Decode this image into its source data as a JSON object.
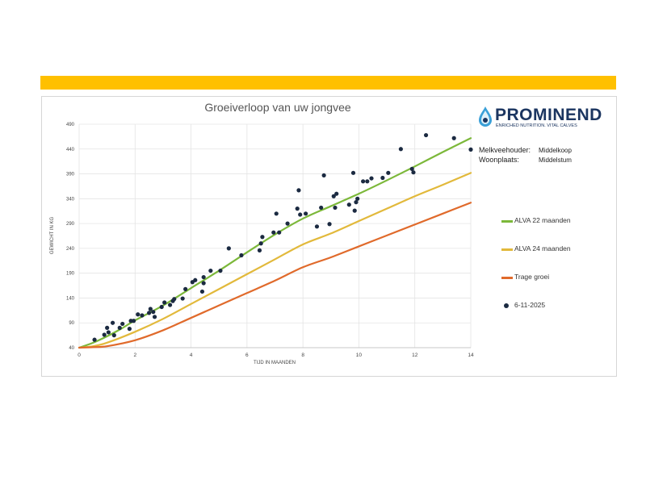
{
  "header": {
    "info": [
      {
        "label": "Melkveehouder:",
        "value": "Middelkoop"
      },
      {
        "label": "Woonplaats:",
        "value": "Middelstum"
      }
    ]
  },
  "logo": {
    "name": "PROMINEND",
    "tagline": "ENRICHED NUTRITION. VITAL CALVES",
    "icon": "water-drop-logo-icon"
  },
  "colors": {
    "accent_bar": "#ffc000",
    "alva22": "#7cb83a",
    "alva24": "#e2b93b",
    "trage": "#e06a2b",
    "points": "#1b2a41",
    "brand": "#1b3560"
  },
  "chart_data": {
    "type": "scatter",
    "title": "Groeiverloop van uw jongvee",
    "xlabel": "TIJD IN MAANDEN",
    "ylabel": "GEWICHT IN KG",
    "xlim": [
      0,
      14
    ],
    "ylim": [
      40,
      490
    ],
    "x_ticks": [
      0,
      2,
      4,
      6,
      8,
      10,
      12,
      14
    ],
    "y_ticks": [
      40,
      90,
      140,
      190,
      240,
      290,
      340,
      390,
      440,
      490
    ],
    "grid": true,
    "legend_position": "right",
    "series": [
      {
        "name": "ALVA 22 maanden",
        "kind": "line",
        "color": "#7cb83a",
        "points": [
          [
            0,
            40
          ],
          [
            0.5,
            50
          ],
          [
            1,
            63
          ],
          [
            1.5,
            78
          ],
          [
            2,
            95
          ],
          [
            3,
            125
          ],
          [
            4,
            160
          ],
          [
            5,
            195
          ],
          [
            6,
            232
          ],
          [
            7,
            268
          ],
          [
            8,
            300
          ],
          [
            9,
            325
          ],
          [
            10,
            350
          ],
          [
            11,
            377
          ],
          [
            12,
            405
          ],
          [
            13,
            434
          ],
          [
            14,
            462
          ]
        ]
      },
      {
        "name": "ALVA 24 maanden",
        "kind": "line",
        "color": "#e2b93b",
        "points": [
          [
            0,
            40
          ],
          [
            0.5,
            43
          ],
          [
            1,
            50
          ],
          [
            2,
            72
          ],
          [
            3,
            98
          ],
          [
            4,
            128
          ],
          [
            5,
            158
          ],
          [
            6,
            188
          ],
          [
            7,
            218
          ],
          [
            8,
            248
          ],
          [
            9,
            270
          ],
          [
            10,
            295
          ],
          [
            11,
            320
          ],
          [
            12,
            345
          ],
          [
            13,
            368
          ],
          [
            14,
            392
          ]
        ]
      },
      {
        "name": "Trage groei",
        "kind": "line",
        "color": "#e06a2b",
        "points": [
          [
            0,
            40
          ],
          [
            0.5,
            41
          ],
          [
            1,
            43
          ],
          [
            2,
            55
          ],
          [
            3,
            75
          ],
          [
            4,
            100
          ],
          [
            5,
            125
          ],
          [
            6,
            150
          ],
          [
            7,
            175
          ],
          [
            8,
            202
          ],
          [
            9,
            222
          ],
          [
            10,
            244
          ],
          [
            11,
            266
          ],
          [
            12,
            288
          ],
          [
            13,
            310
          ],
          [
            14,
            332
          ]
        ]
      },
      {
        "name": "6-11-2025",
        "kind": "scatter",
        "color": "#1b2a41",
        "points": [
          [
            0.55,
            56
          ],
          [
            0.9,
            66
          ],
          [
            1.0,
            80
          ],
          [
            1.05,
            71
          ],
          [
            1.2,
            90
          ],
          [
            1.25,
            65
          ],
          [
            1.45,
            80
          ],
          [
            1.55,
            88
          ],
          [
            1.8,
            78
          ],
          [
            1.85,
            94
          ],
          [
            1.95,
            94
          ],
          [
            2.1,
            107
          ],
          [
            2.25,
            105
          ],
          [
            2.5,
            110
          ],
          [
            2.55,
            118
          ],
          [
            2.65,
            112
          ],
          [
            2.7,
            102
          ],
          [
            2.95,
            122
          ],
          [
            3.05,
            131
          ],
          [
            3.25,
            126
          ],
          [
            3.35,
            134
          ],
          [
            3.4,
            138
          ],
          [
            3.7,
            139
          ],
          [
            3.8,
            158
          ],
          [
            4.05,
            172
          ],
          [
            4.15,
            176
          ],
          [
            4.4,
            153
          ],
          [
            4.45,
            170
          ],
          [
            4.45,
            182
          ],
          [
            4.7,
            195
          ],
          [
            5.05,
            195
          ],
          [
            5.35,
            240
          ],
          [
            5.8,
            226
          ],
          [
            6.45,
            236
          ],
          [
            6.5,
            250
          ],
          [
            6.55,
            263
          ],
          [
            6.95,
            272
          ],
          [
            7.05,
            310
          ],
          [
            7.15,
            272
          ],
          [
            7.45,
            290
          ],
          [
            7.8,
            320
          ],
          [
            7.85,
            357
          ],
          [
            7.9,
            308
          ],
          [
            8.1,
            310
          ],
          [
            8.5,
            284
          ],
          [
            8.65,
            322
          ],
          [
            8.75,
            387
          ],
          [
            8.95,
            289
          ],
          [
            9.1,
            345
          ],
          [
            9.15,
            322
          ],
          [
            9.2,
            350
          ],
          [
            9.65,
            328
          ],
          [
            9.8,
            392
          ],
          [
            9.85,
            316
          ],
          [
            9.9,
            333
          ],
          [
            9.95,
            340
          ],
          [
            10.15,
            375
          ],
          [
            10.3,
            375
          ],
          [
            10.45,
            381
          ],
          [
            10.85,
            382
          ],
          [
            11.05,
            392
          ],
          [
            11.5,
            440
          ],
          [
            11.9,
            400
          ],
          [
            11.95,
            393
          ],
          [
            12.4,
            468
          ],
          [
            13.4,
            462
          ],
          [
            14.0,
            439
          ]
        ]
      }
    ]
  }
}
